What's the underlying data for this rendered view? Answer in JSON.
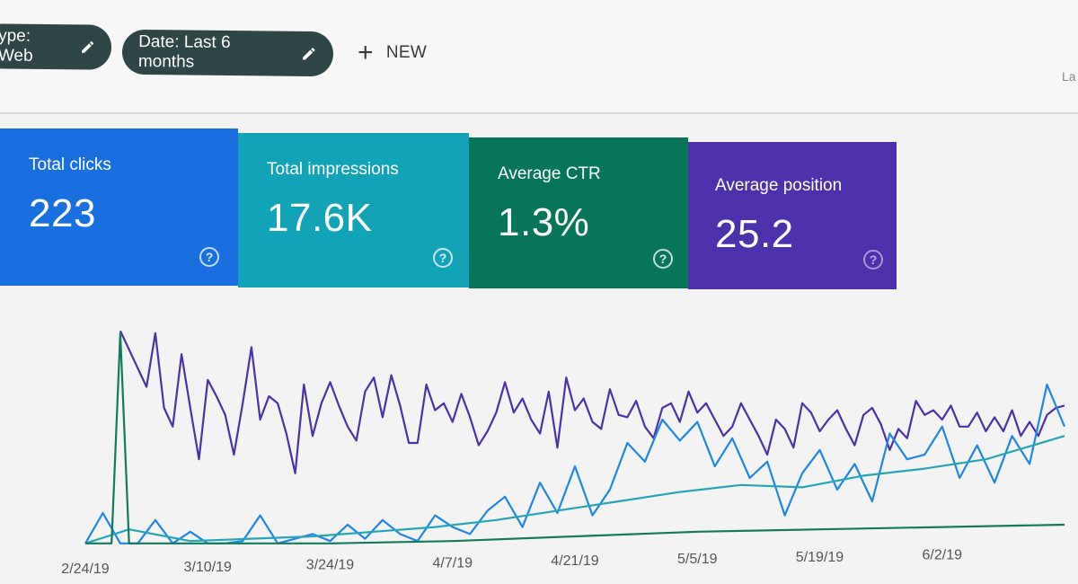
{
  "filters": {
    "type_chip": "ype: Web",
    "date_chip": "Date: Last 6 months",
    "new_label": "NEW",
    "corner_text": "La"
  },
  "metrics": [
    {
      "label": "Total clicks",
      "value": "223",
      "color": "#1a6fe0"
    },
    {
      "label": "Total impressions",
      "value": "17.6K",
      "color": "#13a3b6"
    },
    {
      "label": "Average CTR",
      "value": "1.3%",
      "color": "#07755a"
    },
    {
      "label": "Average position",
      "value": "25.2",
      "color": "#4c30ac"
    }
  ],
  "icons": {
    "edit": "pencil-icon",
    "add": "plus-icon",
    "help": "question-mark-circle-icon"
  },
  "chart_data": {
    "type": "line",
    "x_tick_labels": [
      "2/24/19",
      "3/10/19",
      "3/24/19",
      "4/7/19",
      "4/21/19",
      "5/5/19",
      "5/19/19",
      "6/2/19"
    ],
    "x_range": [
      "2019-02-24",
      "2019-06-16"
    ],
    "grid": false,
    "legend": "none",
    "series": [
      {
        "color": "#4c30ac",
        "x": [
          "2019-02-28",
          "2019-03-03",
          "2019-03-04",
          "2019-03-05",
          "2019-03-06",
          "2019-03-07",
          "2019-03-08",
          "2019-03-09",
          "2019-03-10",
          "2019-03-11",
          "2019-03-12",
          "2019-03-13",
          "2019-03-14",
          "2019-03-15",
          "2019-03-16",
          "2019-03-17",
          "2019-03-18",
          "2019-03-19",
          "2019-03-20",
          "2019-03-21",
          "2019-03-22",
          "2019-03-23",
          "2019-03-24",
          "2019-03-25",
          "2019-03-26",
          "2019-03-27",
          "2019-03-28",
          "2019-03-29",
          "2019-03-30",
          "2019-03-31",
          "2019-04-01",
          "2019-04-02",
          "2019-04-03",
          "2019-04-04",
          "2019-04-05",
          "2019-04-06",
          "2019-04-07",
          "2019-04-08",
          "2019-04-09",
          "2019-04-10",
          "2019-04-11",
          "2019-04-12",
          "2019-04-13",
          "2019-04-14",
          "2019-04-15",
          "2019-04-16",
          "2019-04-17",
          "2019-04-18",
          "2019-04-19",
          "2019-04-20",
          "2019-04-21",
          "2019-04-22",
          "2019-04-23",
          "2019-04-24",
          "2019-04-25",
          "2019-04-26",
          "2019-04-27",
          "2019-04-28",
          "2019-04-29",
          "2019-04-30",
          "2019-05-01",
          "2019-05-02",
          "2019-05-03",
          "2019-05-04",
          "2019-05-05",
          "2019-05-06",
          "2019-05-07",
          "2019-05-08",
          "2019-05-09",
          "2019-05-10",
          "2019-05-11",
          "2019-05-12",
          "2019-05-13",
          "2019-05-14",
          "2019-05-15",
          "2019-05-16",
          "2019-05-17",
          "2019-05-18",
          "2019-05-19",
          "2019-05-20",
          "2019-05-21",
          "2019-05-22",
          "2019-05-23",
          "2019-05-24",
          "2019-05-25",
          "2019-05-26",
          "2019-05-27",
          "2019-05-28",
          "2019-05-29",
          "2019-05-30",
          "2019-05-31",
          "2019-06-01",
          "2019-06-02",
          "2019-06-03",
          "2019-06-04",
          "2019-06-05",
          "2019-06-06",
          "2019-06-07",
          "2019-06-08",
          "2019-06-09",
          "2019-06-10",
          "2019-06-11",
          "2019-06-12",
          "2019-06-13",
          "2019-06-14",
          "2019-06-15",
          "2019-06-16"
        ],
        "values": [
          0.93,
          0.69,
          0.92,
          0.6,
          0.52,
          0.83,
          0.6,
          0.38,
          0.72,
          0.65,
          0.57,
          0.4,
          0.62,
          0.86,
          0.55,
          0.65,
          0.62,
          0.49,
          0.32,
          0.7,
          0.48,
          0.62,
          0.71,
          0.61,
          0.52,
          0.46,
          0.67,
          0.73,
          0.56,
          0.74,
          0.61,
          0.45,
          0.45,
          0.7,
          0.59,
          0.62,
          0.54,
          0.66,
          0.56,
          0.44,
          0.5,
          0.58,
          0.71,
          0.58,
          0.64,
          0.55,
          0.49,
          0.67,
          0.43,
          0.73,
          0.59,
          0.64,
          0.54,
          0.51,
          0.68,
          0.57,
          0.56,
          0.63,
          0.52,
          0.47,
          0.6,
          0.62,
          0.54,
          0.67,
          0.58,
          0.62,
          0.55,
          0.48,
          0.52,
          0.62,
          0.55,
          0.48,
          0.4,
          0.55,
          0.51,
          0.43,
          0.62,
          0.58,
          0.5,
          0.55,
          0.59,
          0.51,
          0.44,
          0.57,
          0.6,
          0.53,
          0.42,
          0.51,
          0.47,
          0.63,
          0.57,
          0.59,
          0.55,
          0.61,
          0.52,
          0.52,
          0.58,
          0.5,
          0.56,
          0.5,
          0.59,
          0.48,
          0.54,
          0.48,
          0.57,
          0.6,
          0.61
        ],
        "note_range": [
          0,
          1
        ]
      },
      {
        "color": "#1f86e6",
        "x": [
          "2019-02-24",
          "2019-02-26",
          "2019-02-28",
          "2019-03-02",
          "2019-03-04",
          "2019-03-06",
          "2019-03-08",
          "2019-03-10",
          "2019-03-12",
          "2019-03-14",
          "2019-03-16",
          "2019-03-18",
          "2019-03-20",
          "2019-03-22",
          "2019-03-24",
          "2019-03-26",
          "2019-03-28",
          "2019-03-30",
          "2019-04-01",
          "2019-04-03",
          "2019-04-05",
          "2019-04-07",
          "2019-04-09",
          "2019-04-11",
          "2019-04-13",
          "2019-04-15",
          "2019-04-17",
          "2019-04-19",
          "2019-04-21",
          "2019-04-23",
          "2019-04-25",
          "2019-04-27",
          "2019-04-29",
          "2019-05-01",
          "2019-05-03",
          "2019-05-05",
          "2019-05-07",
          "2019-05-09",
          "2019-05-11",
          "2019-05-13",
          "2019-05-15",
          "2019-05-17",
          "2019-05-19",
          "2019-05-21",
          "2019-05-23",
          "2019-05-25",
          "2019-05-27",
          "2019-05-29",
          "2019-05-31",
          "2019-06-02",
          "2019-06-04",
          "2019-06-06",
          "2019-06-08",
          "2019-06-10",
          "2019-06-12",
          "2019-06-14",
          "2019-06-16"
        ],
        "values": [
          0.02,
          0.15,
          0.02,
          0.02,
          0.12,
          0.02,
          0.07,
          0.02,
          0.02,
          0.03,
          0.14,
          0.02,
          0.04,
          0.06,
          0.03,
          0.1,
          0.04,
          0.12,
          0.06,
          0.03,
          0.14,
          0.09,
          0.06,
          0.16,
          0.22,
          0.09,
          0.28,
          0.15,
          0.35,
          0.14,
          0.25,
          0.45,
          0.37,
          0.55,
          0.46,
          0.54,
          0.35,
          0.47,
          0.3,
          0.37,
          0.14,
          0.32,
          0.42,
          0.25,
          0.36,
          0.2,
          0.49,
          0.38,
          0.4,
          0.52,
          0.3,
          0.44,
          0.28,
          0.48,
          0.36,
          0.7,
          0.52
        ],
        "note_range": [
          0,
          1
        ]
      },
      {
        "color": "#23a6b5",
        "x": [
          "2019-02-24",
          "2019-03-01",
          "2019-03-08",
          "2019-03-15",
          "2019-03-22",
          "2019-03-29",
          "2019-04-05",
          "2019-04-12",
          "2019-04-19",
          "2019-04-26",
          "2019-05-03",
          "2019-05-10",
          "2019-05-17",
          "2019-05-24",
          "2019-05-31",
          "2019-06-07",
          "2019-06-16"
        ],
        "values": [
          0.02,
          0.08,
          0.03,
          0.04,
          0.05,
          0.07,
          0.09,
          0.12,
          0.16,
          0.2,
          0.24,
          0.27,
          0.26,
          0.31,
          0.34,
          0.38,
          0.48
        ],
        "note_range": [
          0,
          1
        ]
      },
      {
        "color": "#137a5c",
        "x": [
          "2019-02-24",
          "2019-02-27",
          "2019-02-28",
          "2019-03-01",
          "2019-03-10",
          "2019-03-24",
          "2019-04-07",
          "2019-04-21",
          "2019-05-05",
          "2019-05-19",
          "2019-06-02",
          "2019-06-16"
        ],
        "values": [
          0.02,
          0.02,
          0.92,
          0.02,
          0.02,
          0.02,
          0.03,
          0.05,
          0.07,
          0.08,
          0.09,
          0.1
        ],
        "note_range": [
          0,
          1
        ]
      }
    ]
  }
}
